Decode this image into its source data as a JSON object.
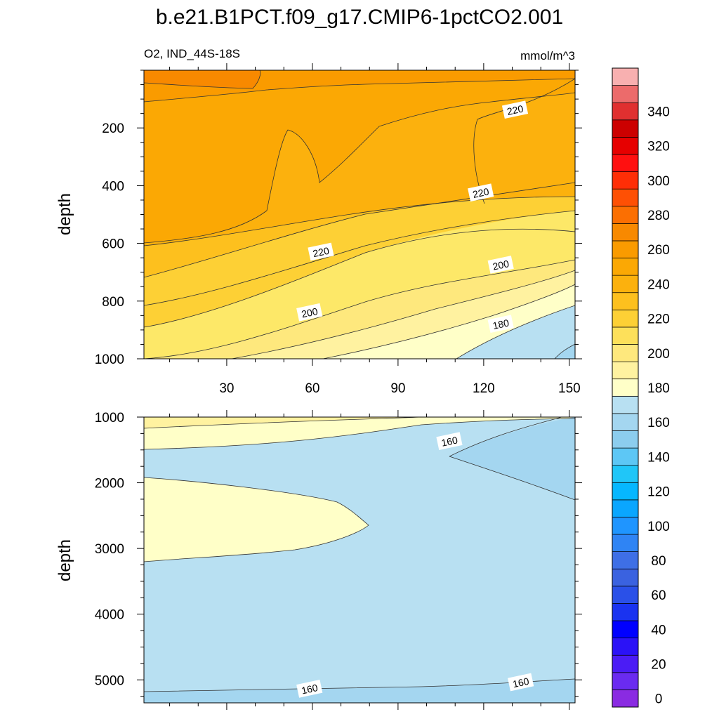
{
  "chart_data": {
    "type": "heatmap",
    "title": "b.e21.B1PCT.f09_g17.CMIP6-1pctCO2.001",
    "units": "mmol/m^3",
    "colorbar": {
      "levels": [
        0,
        10,
        20,
        30,
        40,
        50,
        60,
        70,
        80,
        90,
        100,
        110,
        120,
        130,
        140,
        150,
        160,
        170,
        180,
        190,
        200,
        210,
        220,
        230,
        240,
        250,
        260,
        270,
        280,
        290,
        300,
        310,
        320,
        330,
        340,
        350
      ],
      "tick_labels": [
        "0",
        "20",
        "40",
        "60",
        "80",
        "100",
        "120",
        "140",
        "160",
        "180",
        "200",
        "220",
        "240",
        "260",
        "280",
        "300",
        "320",
        "340"
      ],
      "colors": [
        "#b0f0e8",
        "#8a2be2",
        "#6a2bf0",
        "#4b1cf5",
        "#2b12f7",
        "#0000ff",
        "#1a33f0",
        "#2a50e8",
        "#3a62e0",
        "#3e6fe6",
        "#2f84f4",
        "#1f95ff",
        "#0aa6ff",
        "#06b7ff",
        "#20c6f8",
        "#5dc7f5",
        "#8ccdee",
        "#a4d6f0",
        "#b8e0f2",
        "#ffffc8",
        "#fff2a0",
        "#fee87d",
        "#fde05a",
        "#fdd035",
        "#fdc01e",
        "#fcb10d",
        "#fba804",
        "#fa9b00",
        "#f88900",
        "#fb6f02",
        "#fe5004",
        "#ff2e06",
        "#ff1010",
        "#e60000",
        "#cc0000",
        "#e03030",
        "#ec6b6b",
        "#f8b0b0"
      ]
    },
    "panels": [
      {
        "name": "upper",
        "subtitle": "O2, IND_44S-18S",
        "ylabel": "depth",
        "x_range": [
          1,
          152
        ],
        "y_range": [
          0,
          1000
        ],
        "x_ticks": [
          30,
          60,
          90,
          120,
          150
        ],
        "y_ticks": [
          200,
          400,
          600,
          800,
          1000
        ],
        "contour_labels": [
          {
            "text": "220",
            "x": 131,
            "y": 138
          },
          {
            "text": "220",
            "x": 119,
            "y": 425
          },
          {
            "text": "220",
            "x": 63,
            "y": 630
          },
          {
            "text": "200",
            "x": 126,
            "y": 675
          },
          {
            "text": "200",
            "x": 59,
            "y": 840
          },
          {
            "text": "180",
            "x": 126,
            "y": 880
          }
        ]
      },
      {
        "name": "lower",
        "ylabel": "depth",
        "x_range": [
          1,
          152
        ],
        "y_range": [
          1000,
          5350
        ],
        "y_ticks": [
          1000,
          2000,
          3000,
          4000,
          5000
        ],
        "contour_labels": [
          {
            "text": "160",
            "x": 108,
            "y": 1370
          },
          {
            "text": "160",
            "x": 59,
            "y": 5140
          },
          {
            "text": "160",
            "x": 133,
            "y": 5040
          }
        ]
      }
    ]
  }
}
